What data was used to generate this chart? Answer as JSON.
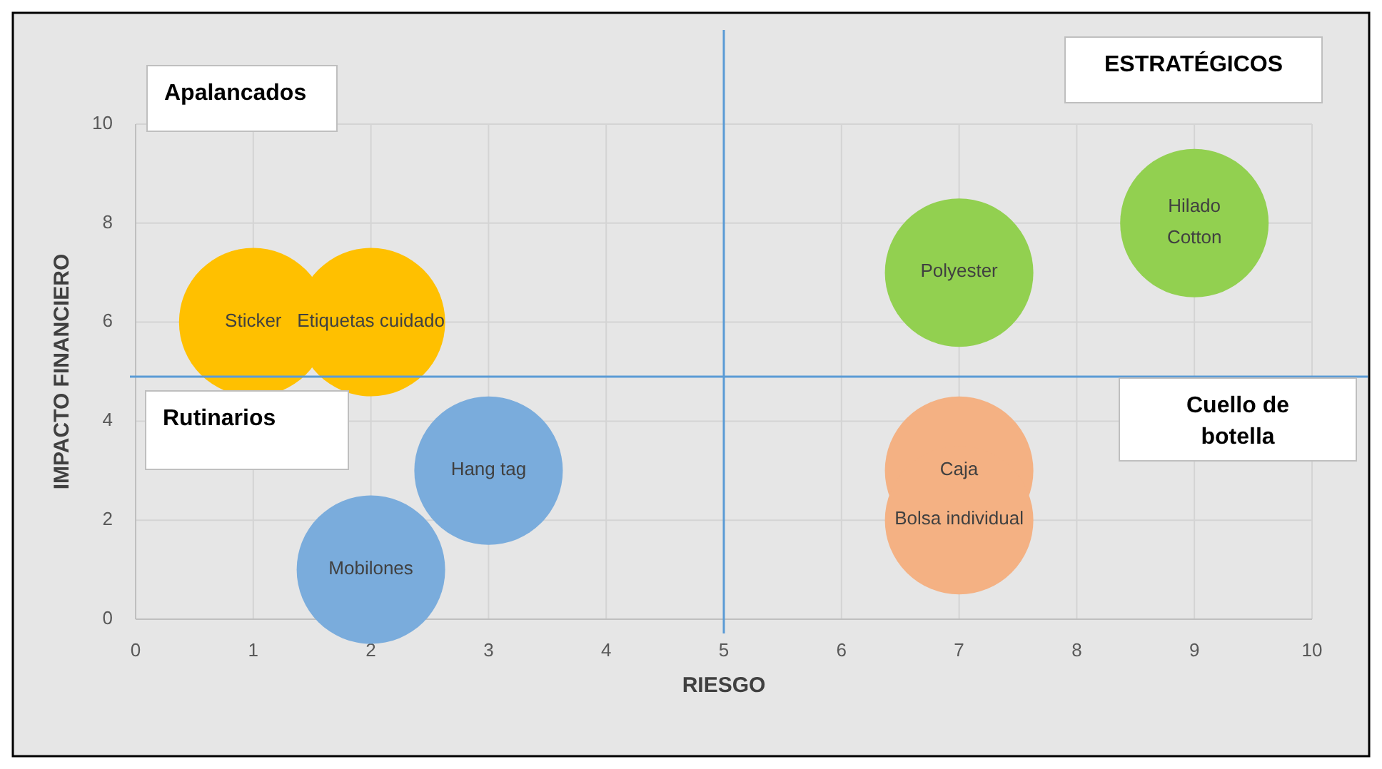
{
  "chart_data": {
    "type": "bubble",
    "xlabel": "RIESGO",
    "ylabel": "IMPACTO FINANCIERO",
    "xlim": [
      0,
      10
    ],
    "xticks": [
      0,
      1,
      2,
      3,
      4,
      5,
      6,
      7,
      8,
      9,
      10
    ],
    "ylim": [
      0,
      10
    ],
    "yticks": [
      0,
      2,
      4,
      6,
      8,
      10
    ],
    "grid": true,
    "series": [
      {
        "color": "#ffc000",
        "x": [
          1,
          2
        ],
        "values": [
          6,
          6
        ],
        "sizes": [
          1,
          1
        ],
        "value_labels": [
          "Sticker",
          "Etiquetas cuidado"
        ]
      },
      {
        "color": "#7aacdc",
        "x": [
          3,
          2
        ],
        "values": [
          3,
          1
        ],
        "sizes": [
          1,
          1
        ],
        "value_labels": [
          "Hang tag",
          "Mobilones"
        ]
      },
      {
        "color": "#92d050",
        "x": [
          7,
          9
        ],
        "values": [
          7,
          8
        ],
        "sizes": [
          1,
          1
        ],
        "value_labels": [
          "Polyester",
          "Hilado\nCotton"
        ]
      },
      {
        "color": "#f4b183",
        "x": [
          7,
          7
        ],
        "values": [
          3,
          2
        ],
        "sizes": [
          1,
          1
        ],
        "value_labels": [
          "Caja",
          "Bolsa individual"
        ]
      }
    ],
    "ref_lines": [
      {
        "axis": "x",
        "value": 5,
        "color": "#5b9bd5"
      },
      {
        "axis": "y",
        "value": 4.9,
        "color": "#5b9bd5"
      }
    ],
    "annotations": [
      "Apalancados",
      "ESTRATÉGICOS",
      "Rutinarios",
      "Cuello de\nbotella"
    ]
  }
}
